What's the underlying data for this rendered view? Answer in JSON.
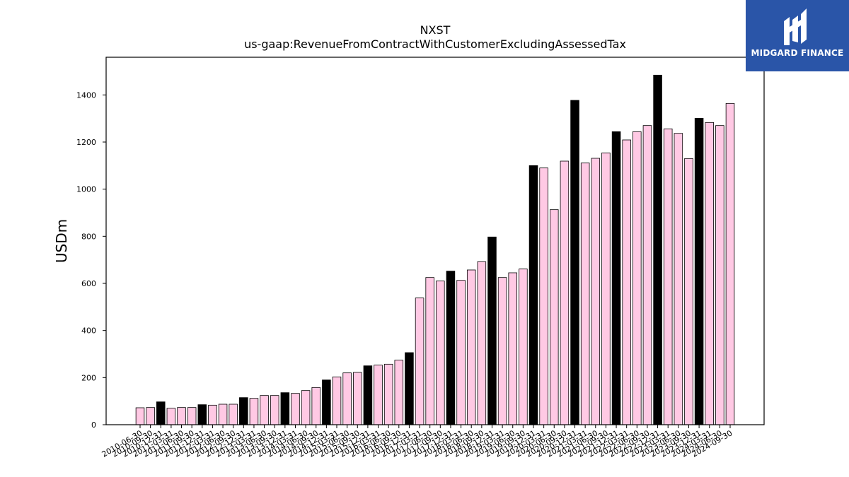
{
  "logo": {
    "text": "MIDGARD FINANCE"
  },
  "chart_data": {
    "type": "bar",
    "title": "NXST",
    "subtitle": "us-gaap:RevenueFromContractWithCustomerExcludingAssessedTax",
    "xlabel": "",
    "ylabel": "USDm",
    "ylim": [
      0,
      1560
    ],
    "yticks": [
      0,
      200,
      400,
      600,
      800,
      1000,
      1200,
      1400
    ],
    "grid": false,
    "colors": {
      "quarter": "#ffc9e4",
      "annual": "#000000",
      "edge": "#000000"
    },
    "categories": [
      "2010-06-30",
      "2010-09-30",
      "2010-12-31",
      "2011-03-31",
      "2011-06-30",
      "2011-09-30",
      "2011-12-31",
      "2012-03-31",
      "2012-06-30",
      "2012-09-30",
      "2012-12-31",
      "2013-03-31",
      "2013-06-30",
      "2013-09-30",
      "2013-12-31",
      "2014-03-31",
      "2014-06-30",
      "2014-09-30",
      "2014-12-31",
      "2015-03-31",
      "2015-06-30",
      "2015-09-30",
      "2015-12-31",
      "2016-03-31",
      "2016-06-30",
      "2016-09-30",
      "2016-12-31",
      "2017-03-31",
      "2017-06-30",
      "2017-09-30",
      "2017-12-31",
      "2018-03-31",
      "2018-06-30",
      "2018-09-30",
      "2018-12-31",
      "2019-03-31",
      "2019-06-30",
      "2019-09-30",
      "2019-12-31",
      "2020-03-31",
      "2020-06-30",
      "2020-09-30",
      "2020-12-31",
      "2021-03-31",
      "2021-06-30",
      "2021-09-30",
      "2021-12-31",
      "2022-03-31",
      "2022-06-30",
      "2022-09-30",
      "2022-12-31",
      "2023-03-31",
      "2023-06-30",
      "2023-09-30",
      "2023-12-31",
      "2024-03-31",
      "2024-06-30",
      "2024-09-30"
    ],
    "values": [
      72,
      73,
      97,
      70,
      73,
      73,
      85,
      83,
      87,
      87,
      115,
      112,
      124,
      124,
      136,
      133,
      145,
      158,
      190,
      203,
      220,
      222,
      250,
      253,
      257,
      274,
      306,
      538,
      625,
      610,
      652,
      613,
      657,
      692,
      797,
      625,
      645,
      661,
      1100,
      1090,
      913,
      1119,
      1377,
      1111,
      1131,
      1154,
      1244,
      1209,
      1244,
      1270,
      1484,
      1256,
      1237,
      1130,
      1301,
      1283,
      1270,
      1364
    ],
    "annual": [
      false,
      false,
      true,
      false,
      false,
      false,
      true,
      false,
      false,
      false,
      true,
      false,
      false,
      false,
      true,
      false,
      false,
      false,
      true,
      false,
      false,
      false,
      true,
      false,
      false,
      false,
      true,
      false,
      false,
      false,
      true,
      false,
      false,
      false,
      true,
      false,
      false,
      false,
      true,
      false,
      false,
      false,
      true,
      false,
      false,
      false,
      true,
      false,
      false,
      false,
      true,
      false,
      false,
      false,
      true,
      false,
      false,
      false
    ]
  }
}
